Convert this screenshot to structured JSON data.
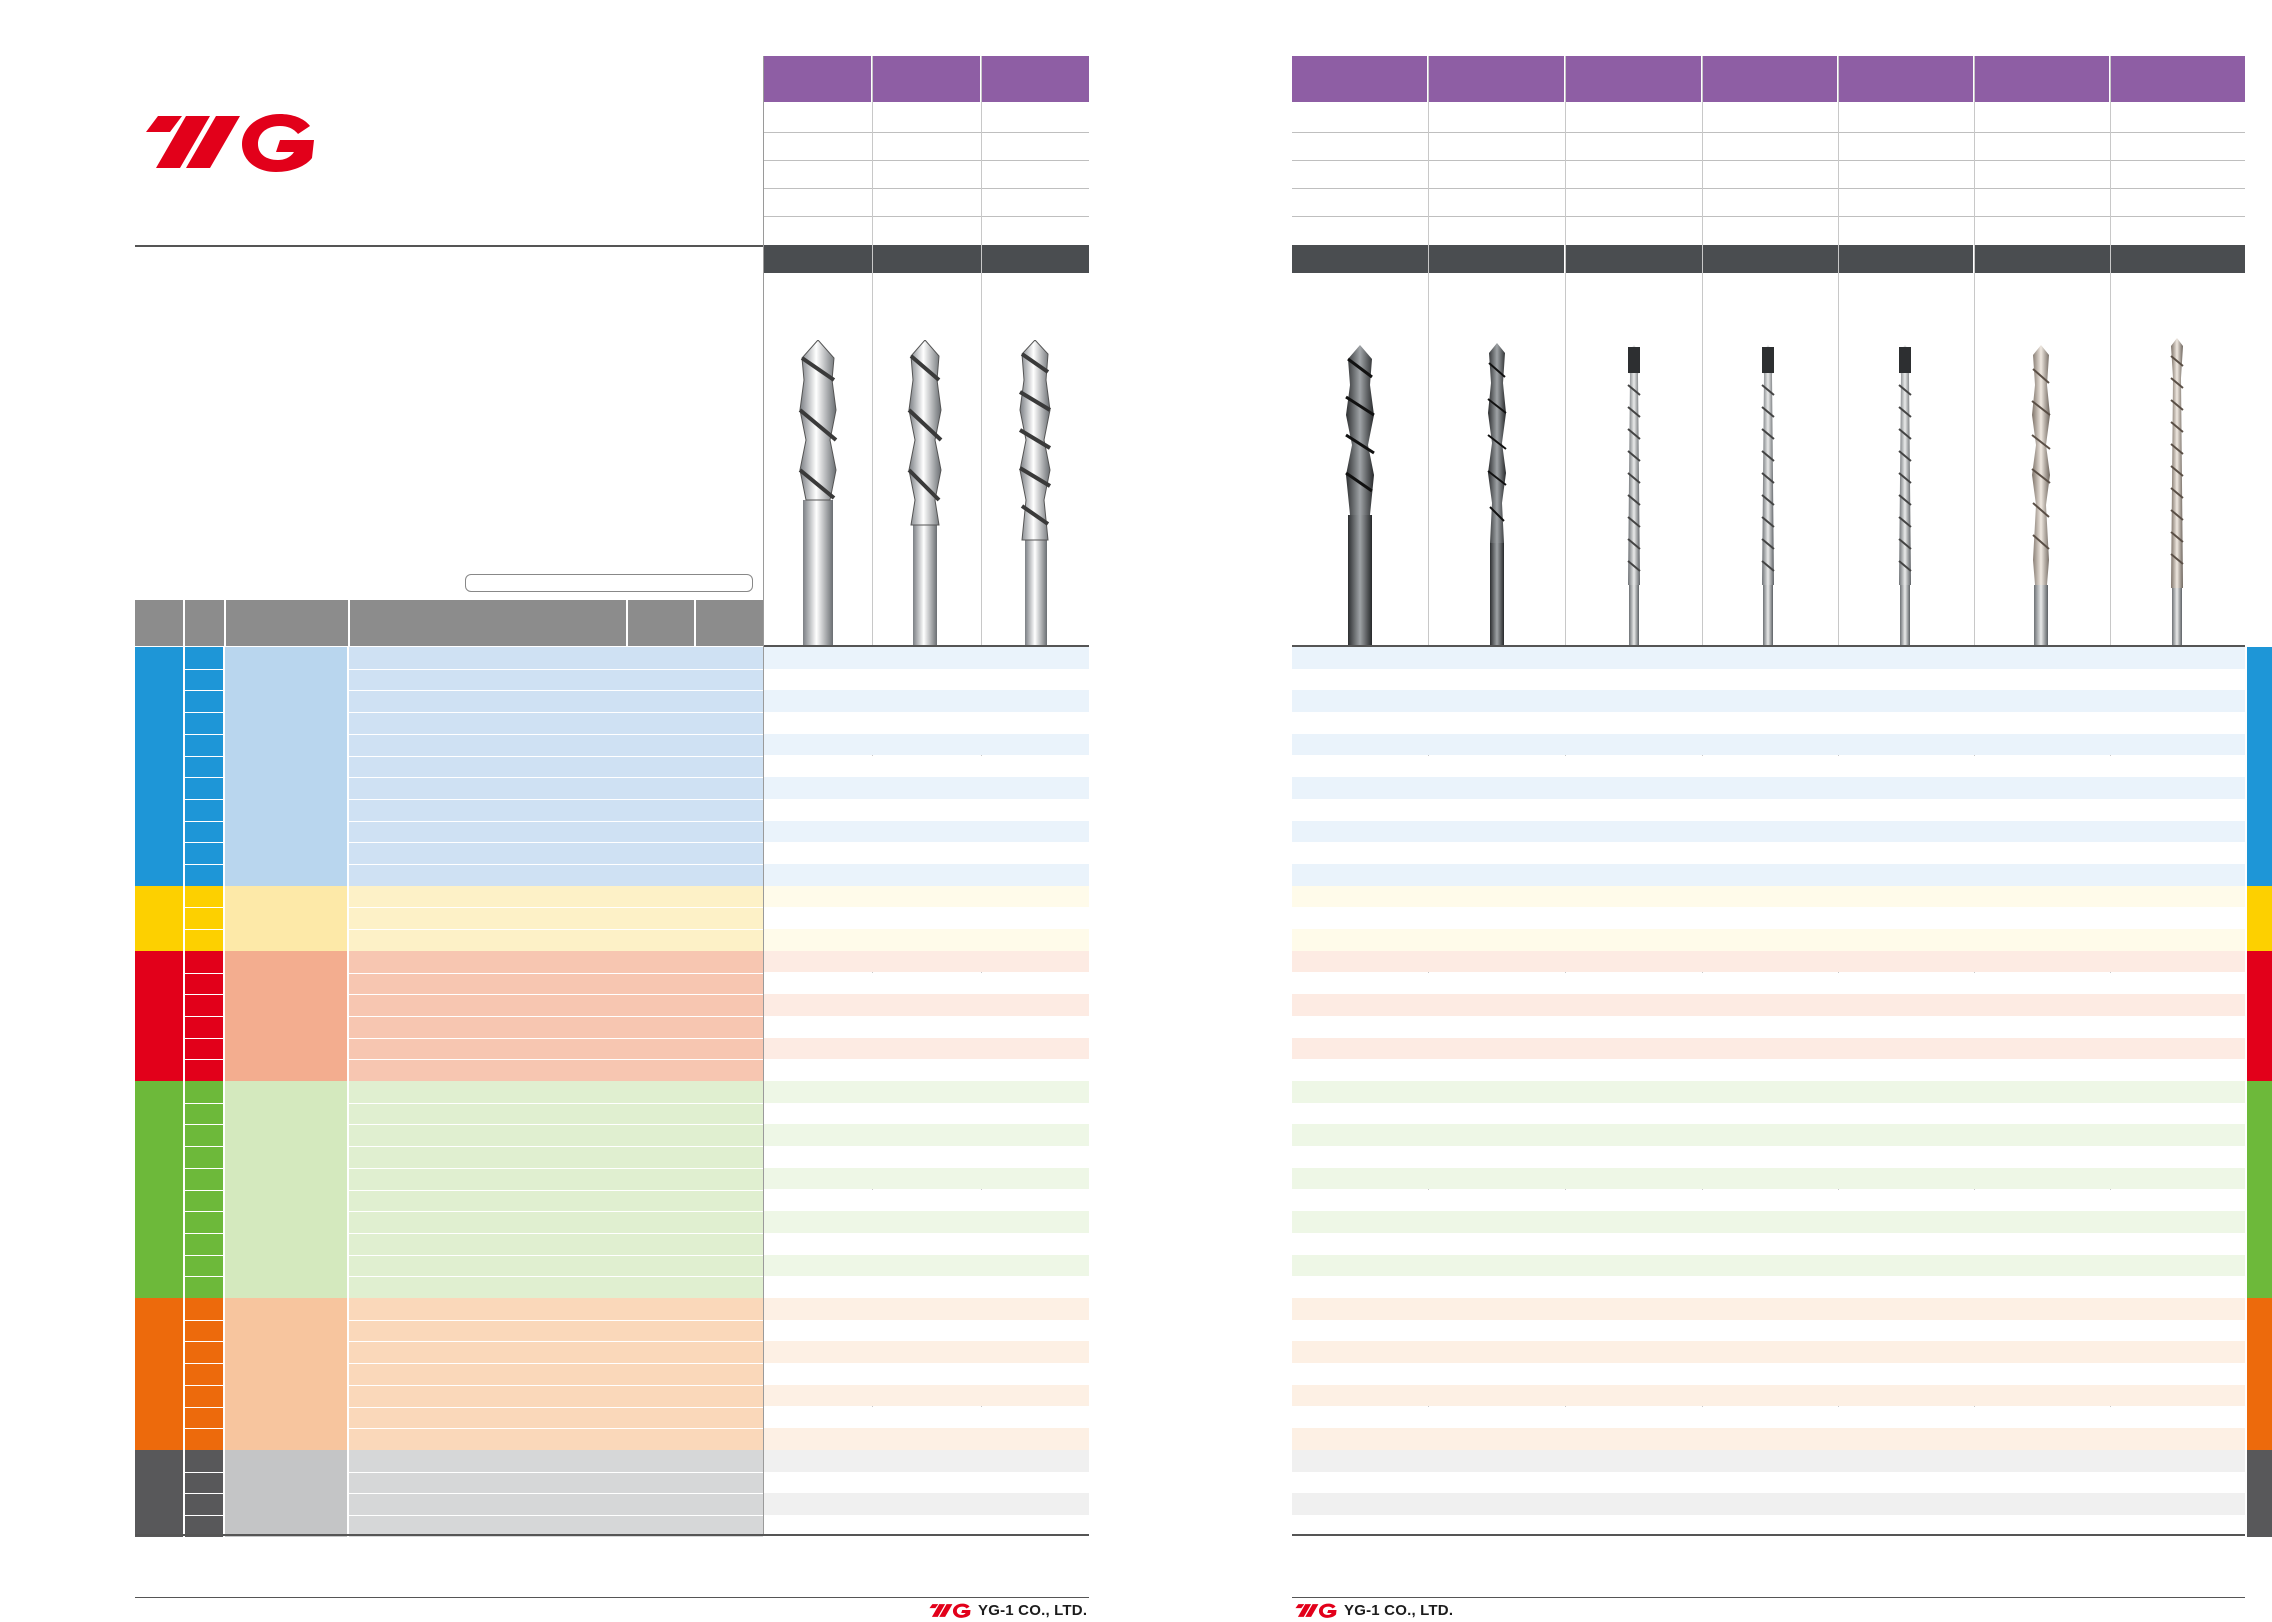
{
  "brand": {
    "logo_text": "YG",
    "company": "YG-1 CO., LTD.",
    "colors": {
      "red": "#e2001a",
      "purple": "#8e5ea4",
      "dark": "#4a4d50"
    }
  },
  "material_groups": [
    {
      "key": "P",
      "rows": 11,
      "main": "#1e96d7",
      "light": "#b9d6ee",
      "pale": "#cfe1f3",
      "stripe": "#eaf3fb"
    },
    {
      "key": "M",
      "rows": 3,
      "main": "#fdd000",
      "light": "#fde9a8",
      "pale": "#fdf1c7",
      "stripe": "#fffbea"
    },
    {
      "key": "K",
      "rows": 6,
      "main": "#e2001a",
      "light": "#f3ad8f",
      "pale": "#f7c6b1",
      "stripe": "#fdebe3"
    },
    {
      "key": "N",
      "rows": 10,
      "main": "#6db93a",
      "light": "#d4e9be",
      "pale": "#e0efd0",
      "stripe": "#eef7e6"
    },
    {
      "key": "S",
      "rows": 7,
      "main": "#ed6a0c",
      "light": "#f7c59e",
      "pale": "#fad8ba",
      "stripe": "#fdf0e4"
    },
    {
      "key": "H",
      "rows": 4,
      "main": "#58585a",
      "light": "#c4c5c6",
      "pale": "#d6d7d8",
      "stripe": "#f0f0f0"
    }
  ],
  "icons": {
    "drill": "drill-icon",
    "logo": "yg1-logo-icon"
  }
}
